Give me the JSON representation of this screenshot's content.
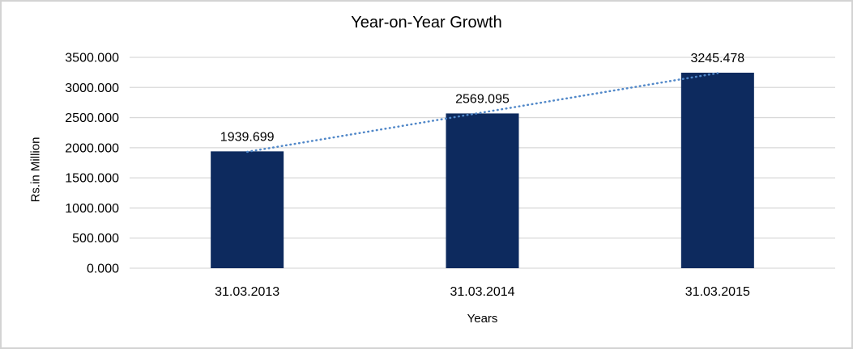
{
  "chart_data": {
    "type": "bar",
    "title": "Year-on-Year Growth",
    "xlabel": "Years",
    "ylabel": "Rs.in Million",
    "categories": [
      "31.03.2013",
      "31.03.2014",
      "31.03.2015"
    ],
    "values": [
      1939.699,
      2569.095,
      3245.478
    ],
    "data_labels": [
      "1939.699",
      "2569.095",
      "3245.478"
    ],
    "y_ticks": [
      "0.000",
      "500.000",
      "1000.000",
      "1500.000",
      "2000.000",
      "2500.000",
      "3000.000",
      "3500.000"
    ],
    "ylim": [
      0,
      3500
    ],
    "grid": true,
    "legend_position": "none",
    "trendline": {
      "type": "linear",
      "style": "dotted"
    },
    "colors": {
      "bar": "#0d2a5e",
      "trendline": "#5087c8",
      "gridline": "#d9d9d9",
      "axis_line": "#d9d9d9",
      "text": "#000000",
      "frame_border": "#d3d3d3",
      "background": "#ffffff"
    }
  }
}
